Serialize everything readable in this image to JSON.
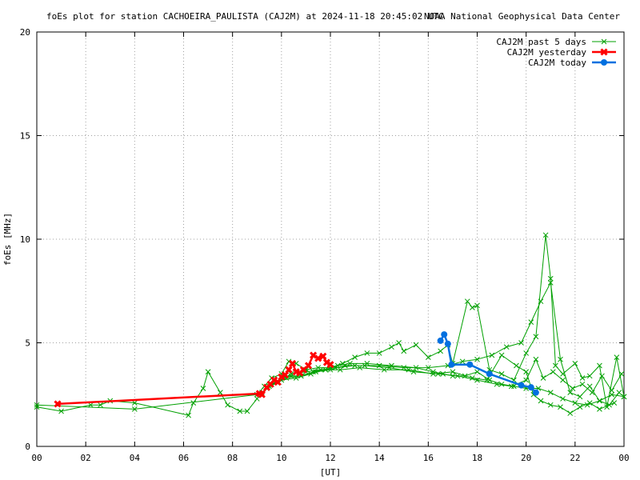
{
  "header": {
    "title": "foEs plot for station CACHOEIRA_PAULISTA (CAJ2M) at 2024-11-18 20:45:02 UTC",
    "credit": "NOAA National Geophysical Data Center"
  },
  "chart_data": {
    "type": "line",
    "title": "foEs plot for station CACHOEIRA_PAULISTA (CAJ2M) at 2024-11-18 20:45:02 UTC",
    "xlabel": "[UT]",
    "ylabel": "foEs [MHz]",
    "xlim": [
      0,
      24
    ],
    "ylim": [
      0,
      20
    ],
    "x_ticks": [
      "00",
      "02",
      "04",
      "06",
      "08",
      "10",
      "12",
      "14",
      "16",
      "18",
      "20",
      "22",
      "00"
    ],
    "y_ticks": [
      "0",
      "5",
      "10",
      "15",
      "20"
    ],
    "grid": true,
    "legend_position": "top-right",
    "series": [
      {
        "name": "CAJ2M past 5 days",
        "color": "#00a000",
        "marker": "x",
        "segments": [
          {
            "x": [
              0.0,
              1.0,
              2.2,
              2.6,
              3.0,
              4.0,
              6.2,
              6.4,
              6.8,
              7.0,
              7.5,
              7.8,
              8.3,
              8.6,
              9.0,
              9.5,
              10.0,
              10.4,
              10.8,
              11.3,
              11.8,
              12.3,
              12.8,
              13.5,
              14.5,
              15.5,
              16.2,
              16.6,
              17.0,
              17.5,
              18.0,
              18.5,
              19.0,
              19.5,
              20.0,
              20.5,
              21.0,
              21.5,
              22.0,
              22.5,
              23.0,
              23.5,
              24.0
            ],
            "y": [
              1.9,
              1.7,
              2.0,
              2.0,
              2.2,
              2.1,
              1.5,
              2.1,
              2.8,
              3.6,
              2.6,
              2.0,
              1.7,
              1.7,
              2.3,
              2.9,
              3.3,
              3.4,
              3.4,
              3.6,
              3.7,
              3.9,
              4.0,
              4.0,
              3.9,
              3.8,
              3.6,
              3.5,
              3.4,
              3.4,
              3.6,
              3.2,
              3.0,
              2.9,
              2.8,
              2.8,
              2.6,
              2.3,
              2.1,
              2.0,
              2.2,
              2.5,
              2.4
            ]
          },
          {
            "x": [
              0.0,
              4.0,
              9.0,
              9.3,
              9.6,
              10.0,
              10.3,
              10.6,
              11.0,
              11.5,
              12.0,
              12.5,
              13.0,
              13.5,
              14.0,
              14.5,
              14.8,
              15.0,
              15.5,
              16.0,
              16.5,
              16.8,
              17.0,
              17.6,
              17.8,
              18.0,
              18.5,
              19.0,
              19.5,
              20.0,
              20.4,
              20.8,
              21.0,
              21.2,
              21.5,
              22.0,
              22.3,
              22.6,
              23.0,
              23.3,
              23.7,
              24.0
            ],
            "y": [
              2.0,
              1.8,
              2.5,
              2.9,
              3.3,
              3.5,
              4.1,
              4.0,
              3.7,
              3.8,
              3.8,
              4.0,
              4.3,
              4.5,
              4.5,
              4.8,
              5.0,
              4.6,
              4.9,
              4.3,
              4.6,
              4.9,
              4.0,
              7.0,
              6.7,
              6.8,
              3.7,
              3.5,
              3.2,
              4.5,
              5.3,
              10.2,
              8.1,
              3.9,
              3.5,
              4.0,
              3.3,
              3.4,
              3.9,
              1.9,
              4.3,
              2.4
            ]
          },
          {
            "x": [
              9.2,
              9.8,
              10.4,
              11.0,
              11.6,
              12.2,
              13.0,
              14.0,
              15.0,
              16.0,
              16.8,
              17.4,
              18.0,
              18.6,
              19.2,
              19.8,
              20.2,
              20.6,
              21.0,
              21.4,
              21.8,
              22.2,
              22.6,
              23.0,
              23.4,
              23.8
            ],
            "y": [
              2.6,
              3.1,
              3.5,
              3.6,
              3.7,
              3.8,
              3.9,
              3.9,
              3.8,
              3.8,
              3.9,
              4.1,
              4.2,
              4.4,
              4.8,
              5.0,
              6.0,
              7.0,
              7.9,
              4.2,
              2.6,
              2.4,
              2.9,
              2.2,
              2.0,
              2.6
            ]
          },
          {
            "x": [
              9.4,
              10.0,
              10.6,
              11.2,
              11.8,
              12.4,
              13.2,
              14.2,
              15.2,
              16.2,
              17.0,
              17.8,
              18.4,
              19.0,
              19.6,
              20.0,
              20.3,
              20.6,
              21.0,
              21.4,
              21.8,
              22.2,
              22.6,
              23.0,
              23.6
            ],
            "y": [
              2.8,
              3.2,
              3.3,
              3.5,
              3.7,
              3.7,
              3.8,
              3.7,
              3.7,
              3.5,
              3.6,
              3.3,
              3.2,
              4.4,
              3.9,
              3.6,
              2.5,
              2.2,
              2.0,
              1.9,
              1.6,
              1.9,
              2.1,
              1.8,
              2.1
            ]
          },
          {
            "x": [
              9.6,
              10.2,
              10.8,
              11.4,
              12.0,
              12.6,
              13.4,
              14.4,
              15.4,
              16.4,
              17.2,
              18.0,
              18.8,
              19.4,
              20.0,
              20.4,
              20.7,
              21.1,
              21.5,
              21.9,
              22.3,
              22.7,
              23.1,
              23.5,
              23.9
            ],
            "y": [
              3.0,
              3.3,
              3.4,
              3.6,
              3.7,
              3.9,
              3.9,
              3.8,
              3.6,
              3.5,
              3.4,
              3.2,
              3.0,
              2.9,
              3.2,
              4.2,
              3.3,
              3.6,
              3.2,
              2.8,
              3.0,
              2.6,
              3.4,
              2.7,
              3.5
            ]
          }
        ]
      },
      {
        "name": "CAJ2M yesterday",
        "color": "#ff0000",
        "marker": "x-bold",
        "x": [
          0.85,
          9.1,
          9.2,
          9.4,
          9.55,
          9.7,
          9.85,
          10.0,
          10.15,
          10.3,
          10.45,
          10.6,
          10.75,
          10.9,
          11.1,
          11.3,
          11.5,
          11.7,
          11.85,
          12.0
        ],
        "y": [
          2.05,
          2.55,
          2.5,
          2.85,
          3.0,
          3.2,
          3.1,
          3.35,
          3.45,
          3.7,
          4.0,
          3.6,
          3.55,
          3.7,
          3.9,
          4.4,
          4.25,
          4.35,
          4.05,
          3.95
        ]
      },
      {
        "name": "CAJ2M today",
        "color": "#0070e0",
        "marker": "dot",
        "x": [
          16.5,
          16.65,
          16.8,
          16.95,
          17.7,
          18.5,
          19.8,
          20.2,
          20.4
        ],
        "y": [
          5.1,
          5.4,
          4.95,
          3.95,
          3.95,
          3.5,
          2.95,
          2.85,
          2.6
        ]
      }
    ]
  }
}
